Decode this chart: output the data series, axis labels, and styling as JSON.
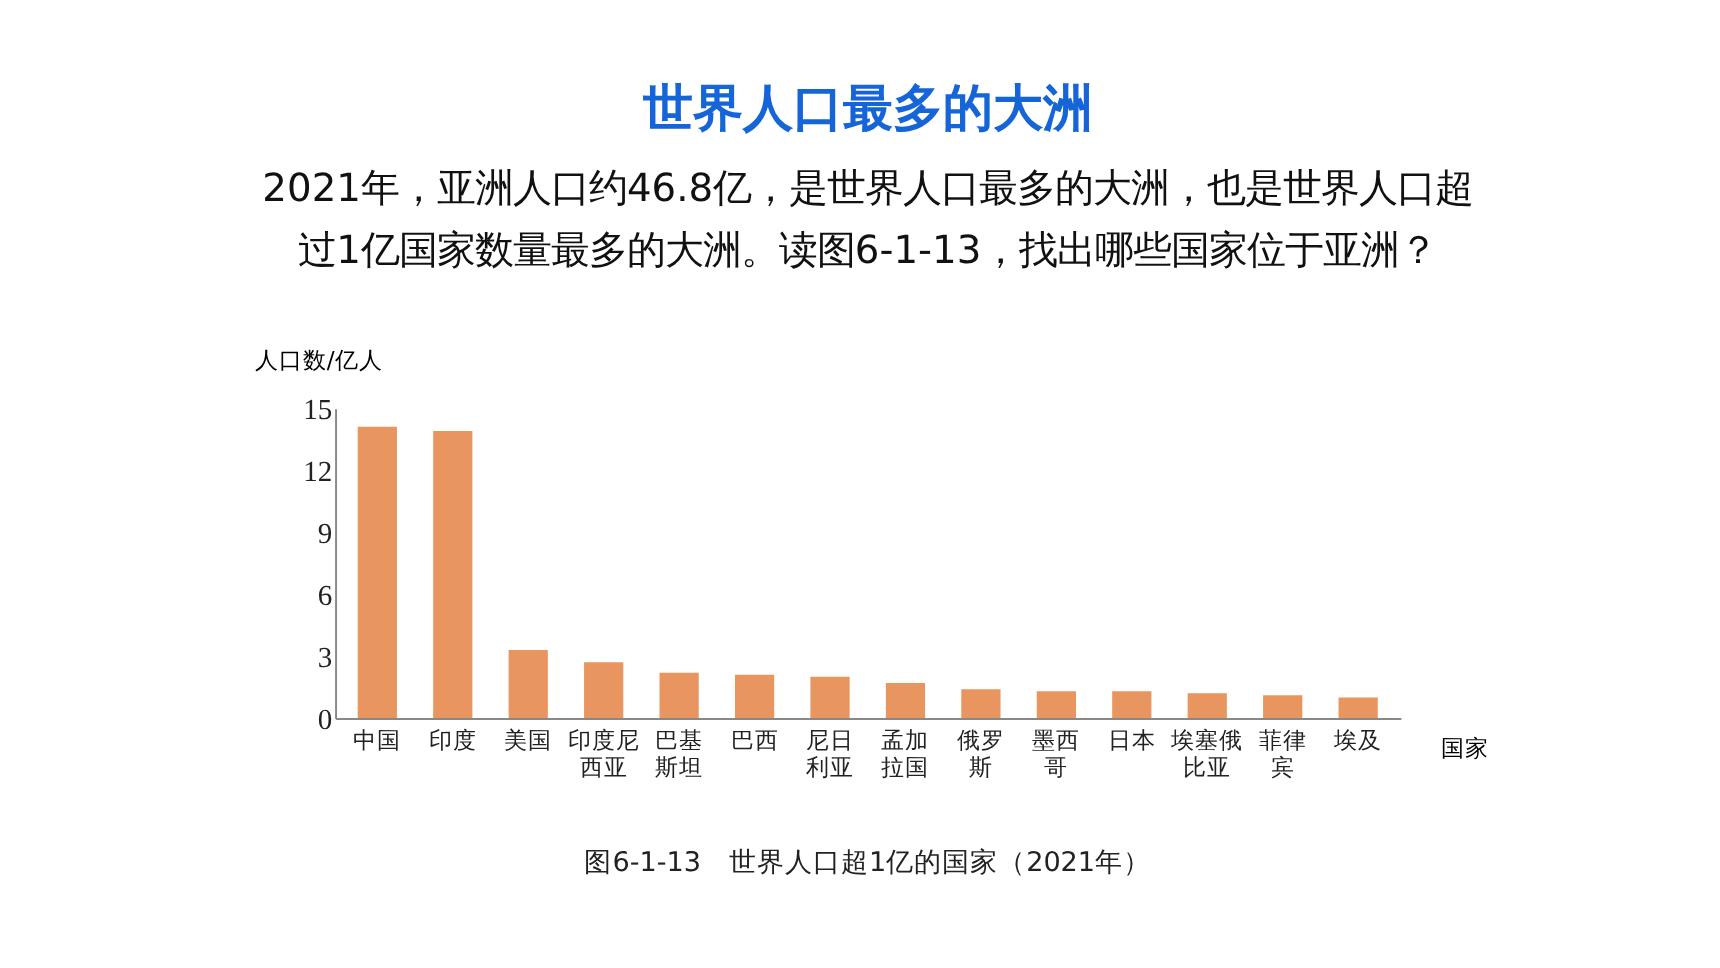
{
  "chart_data": {
    "type": "bar",
    "title": "世界人口最多的大洲",
    "subtitle": "2021年，亚洲人口约46.8亿，是世界人口最多的大洲，也是世界人口超过1亿国家数量最多的大洲。读图6-1-13，找出哪些国家位于亚洲？",
    "ylabel": "人口数/亿人",
    "xlabel": "国家",
    "categories": [
      "中国",
      "印度",
      "美国",
      "印度尼西亚",
      "巴基斯坦",
      "巴西",
      "尼日利亚",
      "孟加拉国",
      "俄罗斯",
      "墨西哥",
      "日本",
      "埃塞俄比亚",
      "菲律宾",
      "埃及"
    ],
    "values": [
      14.1,
      13.9,
      3.3,
      2.7,
      2.2,
      2.1,
      2.0,
      1.7,
      1.4,
      1.3,
      1.3,
      1.2,
      1.1,
      1.0
    ],
    "color": "#e9955f",
    "ylim": [
      0,
      15
    ],
    "yticks": [
      0,
      3,
      6,
      9,
      12,
      15
    ],
    "grid": false,
    "annotations": [
      "图6-1-13　世界人口超1亿的国家（2021年）"
    ]
  }
}
